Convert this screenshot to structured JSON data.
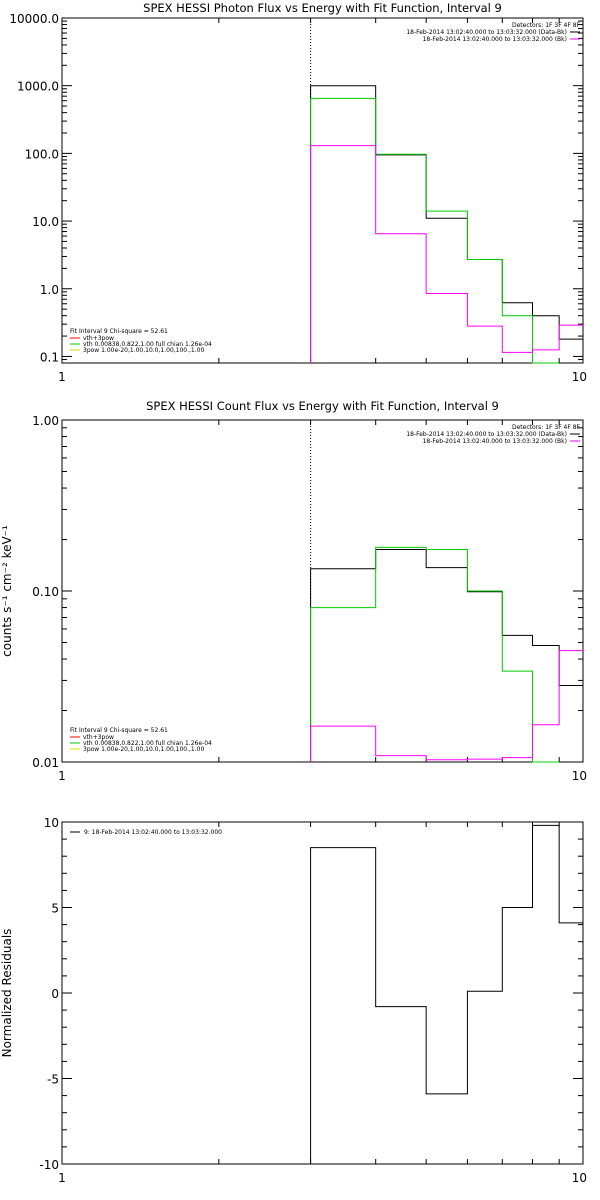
{
  "chart_data": [
    {
      "id": "p1",
      "type": "line",
      "title": "SPEX HESSI Photon Flux vs Energy with Fit Function, Interval 9",
      "xlabel": "",
      "ylabel": "",
      "xscale": "log",
      "yscale": "log",
      "xlim": [
        1,
        10
      ],
      "ylim": [
        0.08,
        10000
      ],
      "xticks": [
        {
          "v": 1,
          "label": "1"
        },
        {
          "v": 10,
          "label": "10"
        }
      ],
      "yticks": [
        {
          "v": 0.1,
          "label": "0.1"
        },
        {
          "v": 1,
          "label": "1.0"
        },
        {
          "v": 10,
          "label": "10.0"
        },
        {
          "v": 100,
          "label": "100.0"
        },
        {
          "v": 1000,
          "label": "1000.0"
        },
        {
          "v": 10000,
          "label": "10000.0"
        }
      ],
      "dotted_x": 3,
      "edges": [
        3,
        4,
        5,
        6,
        7,
        8,
        9,
        10
      ],
      "series": [
        {
          "color": "#000000",
          "values": [
            1000,
            95,
            11,
            2.7,
            0.62,
            0.4,
            0.18
          ]
        },
        {
          "color": "#00cc00",
          "values": [
            650,
            97,
            14,
            2.7,
            0.4,
            0.08,
            null
          ]
        },
        {
          "color": "#ff00ff",
          "values": [
            130,
            6.5,
            0.85,
            0.28,
            0.115,
            0.125,
            0.29
          ]
        }
      ],
      "legend_top": {
        "header": "Detectors: 1F 3F 4F 8F",
        "rows": [
          {
            "text": "18-Feb-2014 13:02:40.000 to 13:03:32.000 (Data-Bk)",
            "color": "#000000"
          },
          {
            "text": "18-Feb-2014 13:02:40.000 to 13:03:32.000 (Bk)",
            "color": "#ff00ff"
          }
        ]
      },
      "legend_bottom": {
        "header": "Fit Interval 9   Chi-square = 52.61",
        "rows": [
          {
            "text": "vth+3pow",
            "color": "#ff0000"
          },
          {
            "text": "vth 0.00838,0.822,1.00  full chian 1.26e-04",
            "color": "#00cc00"
          },
          {
            "text": "3pow 1.00e-20,1.00,10.0,1.00,100.,1.00",
            "color": "#dddd00"
          }
        ]
      }
    },
    {
      "id": "p2",
      "type": "line",
      "title": "SPEX HESSI Count Flux vs Energy with Fit Function, Interval 9",
      "xlabel": "",
      "ylabel": "counts s⁻¹ cm⁻² keV⁻¹",
      "xscale": "log",
      "yscale": "log",
      "xlim": [
        1,
        10
      ],
      "ylim": [
        0.01,
        1.0
      ],
      "xticks": [
        {
          "v": 1,
          "label": "1"
        },
        {
          "v": 10,
          "label": "10"
        }
      ],
      "yticks": [
        {
          "v": 0.01,
          "label": "0.01"
        },
        {
          "v": 0.1,
          "label": "0.10"
        },
        {
          "v": 1.0,
          "label": "1.00"
        }
      ],
      "dotted_x": 3,
      "edges": [
        3,
        4,
        5,
        6,
        7,
        8,
        9,
        10
      ],
      "series": [
        {
          "color": "#000000",
          "values": [
            0.135,
            0.175,
            0.137,
            0.099,
            0.055,
            0.048,
            0.028
          ]
        },
        {
          "color": "#00cc00",
          "values": [
            0.08,
            0.18,
            0.175,
            0.1,
            0.034,
            0.009,
            null
          ]
        },
        {
          "color": "#ff00ff",
          "values": [
            0.0162,
            0.0109,
            0.0103,
            0.0104,
            0.0106,
            0.0165,
            0.0448
          ]
        }
      ],
      "legend_top": {
        "header": "Detectors: 1F 3F 4F 8F",
        "rows": [
          {
            "text": "18-Feb-2014 13:02:40.000 to 13:03:32.000 (Data-Bk)",
            "color": "#000000"
          },
          {
            "text": "18-Feb-2014 13:02:40.000 to 13:03:32.000 (Bk)",
            "color": "#ff00ff"
          }
        ]
      },
      "legend_bottom": {
        "header": "Fit Interval 9   Chi-square = 52.61",
        "rows": [
          {
            "text": "vth+3pow",
            "color": "#ff0000"
          },
          {
            "text": "vth 0.00838,0.822,1.00  full chian 1.26e-04",
            "color": "#00cc00"
          },
          {
            "text": "3pow 1.00e-20,1.00,10.0,1.00,100.,1.00",
            "color": "#dddd00"
          }
        ]
      }
    },
    {
      "id": "p3",
      "type": "line",
      "title": "",
      "xlabel": "",
      "ylabel": "Normalized Residuals",
      "xscale": "log",
      "yscale": "linear",
      "xlim": [
        1,
        10
      ],
      "ylim": [
        -10,
        10
      ],
      "xticks": [
        {
          "v": 1,
          "label": "1"
        },
        {
          "v": 10,
          "label": "10"
        }
      ],
      "yticks": [
        {
          "v": -10,
          "label": "-10"
        },
        {
          "v": -5,
          "label": "-5"
        },
        {
          "v": 0,
          "label": "0"
        },
        {
          "v": 5,
          "label": "5"
        },
        {
          "v": 10,
          "label": "10"
        }
      ],
      "dotted_x": null,
      "edges": [
        3,
        4,
        5,
        6,
        7,
        8,
        9,
        10
      ],
      "series": [
        {
          "color": "#000000",
          "values": [
            8.5,
            -0.8,
            -5.9,
            0.1,
            5.0,
            9.8,
            4.1
          ],
          "drop_first_to_bottom": true
        }
      ],
      "legend_top": {
        "header": "",
        "rows": [
          {
            "text": "9: 18-Feb-2014 13:02:40.000 to 13:03:32.000",
            "color": "#000000"
          }
        ]
      },
      "legend_bottom": null
    }
  ]
}
